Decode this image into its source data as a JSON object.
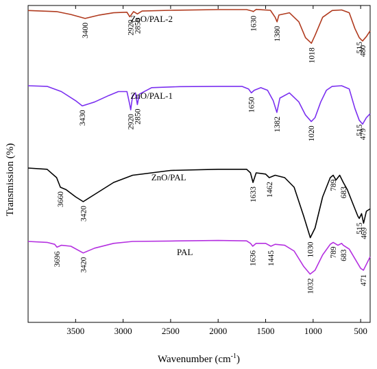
{
  "chart_data": {
    "type": "line",
    "xlabel": "Wavenumber (cm-1)",
    "xlabel_main": "Wavenumber (cm",
    "xlabel_sup": "-1",
    "xlabel_close": ")",
    "ylabel": "Transmission (%)",
    "xlim": [
      4000,
      400
    ],
    "x_reversed": true,
    "xticks": [
      3500,
      3000,
      2500,
      2000,
      1500,
      1000,
      500
    ],
    "y_ticks_shown": false,
    "legend": "inline-labels",
    "series": [
      {
        "name": "ZnO/PAL-2",
        "color": "#b03a1e",
        "points": [
          [
            4000,
            0.02
          ],
          [
            3700,
            0.03
          ],
          [
            3550,
            0.055
          ],
          [
            3400,
            0.09
          ],
          [
            3250,
            0.06
          ],
          [
            3100,
            0.04
          ],
          [
            2960,
            0.035
          ],
          [
            2930,
            0.075
          ],
          [
            2920,
            0.065
          ],
          [
            2890,
            0.03
          ],
          [
            2850,
            0.05
          ],
          [
            2800,
            0.025
          ],
          [
            2500,
            0.018
          ],
          [
            2000,
            0.012
          ],
          [
            1700,
            0.012
          ],
          [
            1640,
            0.025
          ],
          [
            1630,
            0.03
          ],
          [
            1600,
            0.01
          ],
          [
            1450,
            0.018
          ],
          [
            1400,
            0.08
          ],
          [
            1380,
            0.12
          ],
          [
            1360,
            0.06
          ],
          [
            1250,
            0.04
          ],
          [
            1150,
            0.12
          ],
          [
            1080,
            0.26
          ],
          [
            1018,
            0.31
          ],
          [
            980,
            0.24
          ],
          [
            900,
            0.08
          ],
          [
            800,
            0.02
          ],
          [
            700,
            0.015
          ],
          [
            620,
            0.04
          ],
          [
            560,
            0.18
          ],
          [
            515,
            0.26
          ],
          [
            480,
            0.29
          ],
          [
            440,
            0.25
          ],
          [
            400,
            0.2
          ]
        ],
        "peaks": [
          3400,
          2920,
          2850,
          1630,
          1380,
          1018,
          515,
          480
        ]
      },
      {
        "name": "ZnO/PAL-1",
        "color": "#7a2ff0",
        "points": [
          [
            4000,
            0.005
          ],
          [
            3800,
            0.01
          ],
          [
            3650,
            0.05
          ],
          [
            3500,
            0.12
          ],
          [
            3430,
            0.16
          ],
          [
            3300,
            0.13
          ],
          [
            3150,
            0.08
          ],
          [
            3050,
            0.05
          ],
          [
            2960,
            0.05
          ],
          [
            2930,
            0.15
          ],
          [
            2920,
            0.19
          ],
          [
            2900,
            0.08
          ],
          [
            2870,
            0.06
          ],
          [
            2850,
            0.15
          ],
          [
            2830,
            0.07
          ],
          [
            2700,
            0.02
          ],
          [
            2400,
            0.012
          ],
          [
            2000,
            0.01
          ],
          [
            1750,
            0.01
          ],
          [
            1680,
            0.03
          ],
          [
            1650,
            0.06
          ],
          [
            1620,
            0.04
          ],
          [
            1550,
            0.02
          ],
          [
            1480,
            0.04
          ],
          [
            1420,
            0.12
          ],
          [
            1382,
            0.21
          ],
          [
            1350,
            0.1
          ],
          [
            1250,
            0.06
          ],
          [
            1150,
            0.13
          ],
          [
            1080,
            0.23
          ],
          [
            1020,
            0.28
          ],
          [
            980,
            0.25
          ],
          [
            920,
            0.13
          ],
          [
            860,
            0.04
          ],
          [
            800,
            0.01
          ],
          [
            700,
            0.005
          ],
          [
            620,
            0.03
          ],
          [
            560,
            0.18
          ],
          [
            515,
            0.27
          ],
          [
            479,
            0.3
          ],
          [
            440,
            0.25
          ],
          [
            400,
            0.22
          ]
        ],
        "peaks": [
          3430,
          2920,
          2850,
          1650,
          1382,
          1020,
          515,
          479
        ]
      },
      {
        "name": "ZnO/PAL",
        "color": "#000000",
        "points": [
          [
            4000,
            0.0
          ],
          [
            3800,
            0.005
          ],
          [
            3700,
            0.04
          ],
          [
            3660,
            0.08
          ],
          [
            3600,
            0.09
          ],
          [
            3500,
            0.12
          ],
          [
            3420,
            0.14
          ],
          [
            3300,
            0.11
          ],
          [
            3100,
            0.06
          ],
          [
            2900,
            0.03
          ],
          [
            2500,
            0.01
          ],
          [
            2000,
            0.005
          ],
          [
            1700,
            0.005
          ],
          [
            1660,
            0.02
          ],
          [
            1633,
            0.06
          ],
          [
            1600,
            0.02
          ],
          [
            1500,
            0.025
          ],
          [
            1462,
            0.04
          ],
          [
            1400,
            0.03
          ],
          [
            1300,
            0.04
          ],
          [
            1200,
            0.08
          ],
          [
            1100,
            0.2
          ],
          [
            1030,
            0.29
          ],
          [
            980,
            0.25
          ],
          [
            900,
            0.12
          ],
          [
            820,
            0.04
          ],
          [
            789,
            0.03
          ],
          [
            760,
            0.05
          ],
          [
            720,
            0.03
          ],
          [
            683,
            0.06
          ],
          [
            640,
            0.09
          ],
          [
            580,
            0.15
          ],
          [
            530,
            0.2
          ],
          [
            515,
            0.21
          ],
          [
            490,
            0.19
          ],
          [
            469,
            0.23
          ],
          [
            440,
            0.18
          ],
          [
            400,
            0.17
          ]
        ],
        "peaks": [
          3660,
          3420,
          1633,
          1462,
          1030,
          789,
          683,
          515,
          469
        ]
      },
      {
        "name": "PAL",
        "color": "#b42fe0",
        "points": [
          [
            4000,
            0.0
          ],
          [
            3800,
            0.005
          ],
          [
            3720,
            0.015
          ],
          [
            3696,
            0.03
          ],
          [
            3650,
            0.02
          ],
          [
            3550,
            0.025
          ],
          [
            3420,
            0.06
          ],
          [
            3300,
            0.035
          ],
          [
            3100,
            0.01
          ],
          [
            2900,
            0.0
          ],
          [
            2500,
            -0.002
          ],
          [
            2000,
            -0.005
          ],
          [
            1700,
            -0.003
          ],
          [
            1660,
            0.01
          ],
          [
            1636,
            0.025
          ],
          [
            1600,
            0.01
          ],
          [
            1500,
            0.01
          ],
          [
            1445,
            0.025
          ],
          [
            1400,
            0.015
          ],
          [
            1300,
            0.02
          ],
          [
            1200,
            0.05
          ],
          [
            1100,
            0.13
          ],
          [
            1032,
            0.17
          ],
          [
            980,
            0.15
          ],
          [
            900,
            0.07
          ],
          [
            820,
            0.015
          ],
          [
            789,
            0.005
          ],
          [
            740,
            0.02
          ],
          [
            700,
            0.01
          ],
          [
            683,
            0.02
          ],
          [
            620,
            0.04
          ],
          [
            560,
            0.09
          ],
          [
            500,
            0.14
          ],
          [
            471,
            0.15
          ],
          [
            430,
            0.11
          ],
          [
            400,
            0.08
          ]
        ],
        "peaks": [
          3696,
          3420,
          1636,
          1445,
          1032,
          789,
          683,
          471
        ]
      }
    ]
  }
}
